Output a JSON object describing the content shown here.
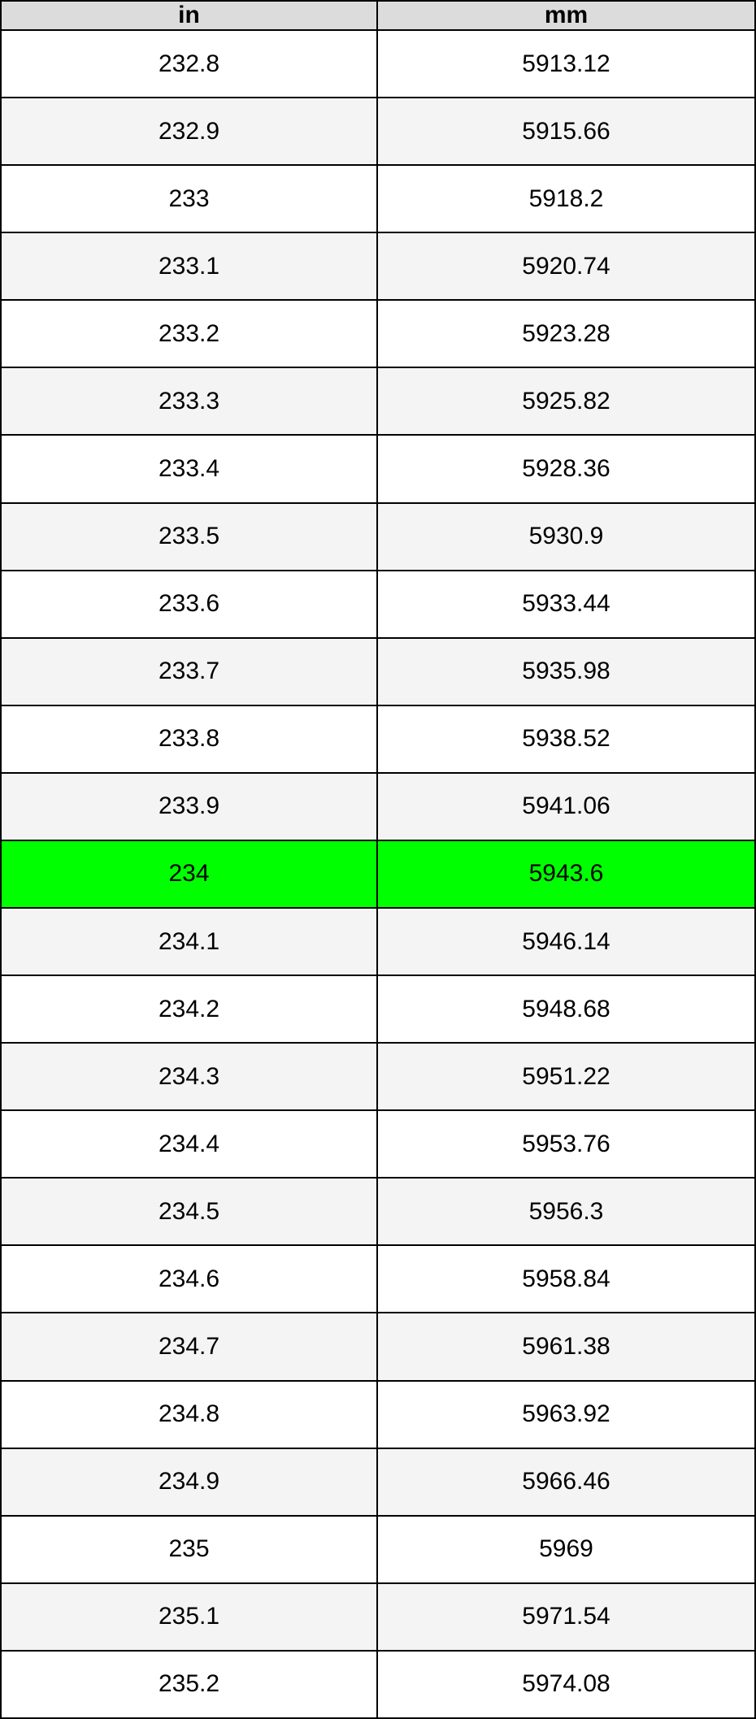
{
  "table": {
    "header": [
      "in",
      "mm"
    ],
    "rows": [
      [
        232.8,
        5913.12
      ],
      [
        232.9,
        5915.66
      ],
      [
        233,
        5918.2
      ],
      [
        233.1,
        5920.74
      ],
      [
        233.2,
        5923.28
      ],
      [
        233.3,
        5925.82
      ],
      [
        233.4,
        5928.36
      ],
      [
        233.5,
        5930.9
      ],
      [
        233.6,
        5933.44
      ],
      [
        233.7,
        5935.98
      ],
      [
        233.8,
        5938.52
      ],
      [
        233.9,
        5941.06
      ],
      [
        234,
        5943.6
      ],
      [
        234.1,
        5946.14
      ],
      [
        234.2,
        5948.68
      ],
      [
        234.3,
        5951.22
      ],
      [
        234.4,
        5953.76
      ],
      [
        234.5,
        5956.3
      ],
      [
        234.6,
        5958.84
      ],
      [
        234.7,
        5961.38
      ],
      [
        234.8,
        5963.92
      ],
      [
        234.9,
        5966.46
      ],
      [
        235,
        5969
      ],
      [
        235.1,
        5971.54
      ],
      [
        235.2,
        5974.08
      ]
    ]
  }
}
